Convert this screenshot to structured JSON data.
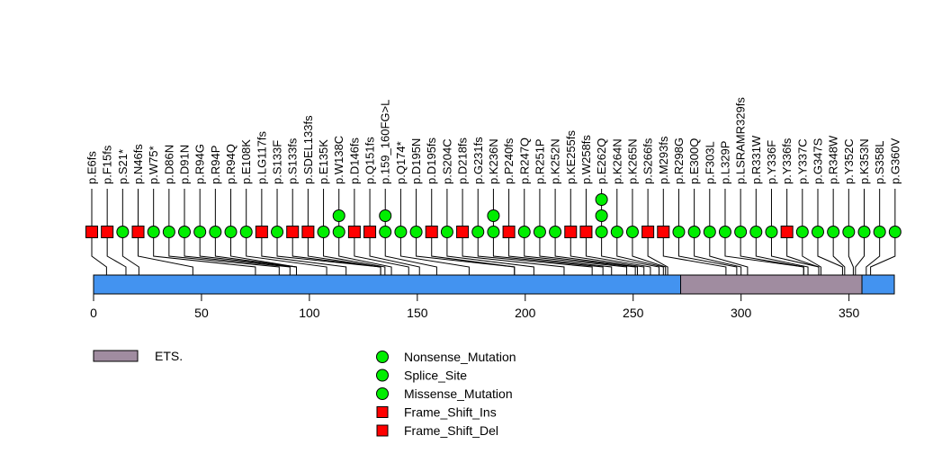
{
  "chart_data": {
    "type": "lollipop",
    "title": "",
    "xlabel": "",
    "protein_length": 371,
    "x_range": [
      0,
      371
    ],
    "x_ticks": [
      0,
      50,
      100,
      150,
      200,
      250,
      300,
      350
    ],
    "domains": [
      {
        "name": "ETS.",
        "start": 272,
        "end": 356,
        "color": "#A08CA0"
      }
    ],
    "backbone_color": "#4393F0",
    "mutation_types": [
      {
        "name": "Nonsense_Mutation",
        "shape": "circle",
        "color": "#00EE00"
      },
      {
        "name": "Splice_Site",
        "shape": "circle",
        "color": "#00EE00"
      },
      {
        "name": "Missense_Mutation",
        "shape": "circle",
        "color": "#00EE00"
      },
      {
        "name": "Frame_Shift_Ins",
        "shape": "square",
        "color": "#FF0000"
      },
      {
        "name": "Frame_Shift_Del",
        "shape": "square",
        "color": "#FF0000"
      }
    ],
    "mutations": [
      {
        "label": "p.E6fs",
        "position": 6,
        "shape": "square",
        "count": 1
      },
      {
        "label": "p.F15fs",
        "position": 15,
        "shape": "square",
        "count": 1
      },
      {
        "label": "p.S21*",
        "position": 21,
        "shape": "circle",
        "count": 1
      },
      {
        "label": "p.N46fs",
        "position": 46,
        "shape": "square",
        "count": 1
      },
      {
        "label": "p.W75*",
        "position": 75,
        "shape": "circle",
        "count": 1
      },
      {
        "label": "p.D86N",
        "position": 86,
        "shape": "circle",
        "count": 1
      },
      {
        "label": "p.D91N",
        "position": 91,
        "shape": "circle",
        "count": 1
      },
      {
        "label": "p.R94G",
        "position": 94,
        "shape": "circle",
        "count": 1
      },
      {
        "label": "p.R94P",
        "position": 94,
        "shape": "circle",
        "count": 1
      },
      {
        "label": "p.R94Q",
        "position": 94,
        "shape": "circle",
        "count": 1
      },
      {
        "label": "p.E108K",
        "position": 108,
        "shape": "circle",
        "count": 1
      },
      {
        "label": "p.LG117fs",
        "position": 117,
        "shape": "square",
        "count": 1
      },
      {
        "label": "p.S133F",
        "position": 133,
        "shape": "circle",
        "count": 1
      },
      {
        "label": "p.S133fs",
        "position": 133,
        "shape": "square",
        "count": 1
      },
      {
        "label": "p.SDEL133fs",
        "position": 133,
        "shape": "square",
        "count": 1
      },
      {
        "label": "p.E135K",
        "position": 135,
        "shape": "circle",
        "count": 1
      },
      {
        "label": "p.W138C",
        "position": 138,
        "shape": "circle",
        "count": 2
      },
      {
        "label": "p.D146fs",
        "position": 146,
        "shape": "square",
        "count": 1
      },
      {
        "label": "p.Q151fs",
        "position": 151,
        "shape": "square",
        "count": 1
      },
      {
        "label": "p.159_160FG>L",
        "position": 159,
        "shape": "circle",
        "count": 2
      },
      {
        "label": "p.Q174*",
        "position": 174,
        "shape": "circle",
        "count": 1
      },
      {
        "label": "p.D195N",
        "position": 195,
        "shape": "circle",
        "count": 1
      },
      {
        "label": "p.D195fs",
        "position": 195,
        "shape": "square",
        "count": 1
      },
      {
        "label": "p.S204C",
        "position": 204,
        "shape": "circle",
        "count": 1
      },
      {
        "label": "p.D218fs",
        "position": 218,
        "shape": "square",
        "count": 1
      },
      {
        "label": "p.G231fs",
        "position": 231,
        "shape": "circle",
        "count": 1
      },
      {
        "label": "p.K236N",
        "position": 236,
        "shape": "circle",
        "count": 2
      },
      {
        "label": "p.P240fs",
        "position": 240,
        "shape": "square",
        "count": 1
      },
      {
        "label": "p.R247Q",
        "position": 247,
        "shape": "circle",
        "count": 1
      },
      {
        "label": "p.R251P",
        "position": 251,
        "shape": "circle",
        "count": 1
      },
      {
        "label": "p.K252N",
        "position": 252,
        "shape": "circle",
        "count": 1
      },
      {
        "label": "p.KE255fs",
        "position": 255,
        "shape": "square",
        "count": 1
      },
      {
        "label": "p.W258fs",
        "position": 258,
        "shape": "square",
        "count": 1
      },
      {
        "label": "p.E262Q",
        "position": 262,
        "shape": "circle",
        "count": 3
      },
      {
        "label": "p.K264N",
        "position": 264,
        "shape": "circle",
        "count": 1
      },
      {
        "label": "p.K265N",
        "position": 265,
        "shape": "circle",
        "count": 1
      },
      {
        "label": "p.S266fs",
        "position": 266,
        "shape": "square",
        "count": 1
      },
      {
        "label": "p.M293fs",
        "position": 293,
        "shape": "square",
        "count": 1
      },
      {
        "label": "p.R298G",
        "position": 298,
        "shape": "circle",
        "count": 1
      },
      {
        "label": "p.E300Q",
        "position": 300,
        "shape": "circle",
        "count": 1
      },
      {
        "label": "p.F303L",
        "position": 303,
        "shape": "circle",
        "count": 1
      },
      {
        "label": "p.L329P",
        "position": 329,
        "shape": "circle",
        "count": 1
      },
      {
        "label": "p.LSRAMR329fs",
        "position": 329,
        "shape": "circle",
        "count": 1
      },
      {
        "label": "p.R331W",
        "position": 331,
        "shape": "circle",
        "count": 1
      },
      {
        "label": "p.Y336F",
        "position": 336,
        "shape": "circle",
        "count": 1
      },
      {
        "label": "p.Y336fs",
        "position": 336,
        "shape": "square",
        "count": 1
      },
      {
        "label": "p.Y337C",
        "position": 337,
        "shape": "circle",
        "count": 1
      },
      {
        "label": "p.G347S",
        "position": 347,
        "shape": "circle",
        "count": 1
      },
      {
        "label": "p.R348W",
        "position": 348,
        "shape": "circle",
        "count": 1
      },
      {
        "label": "p.Y352C",
        "position": 352,
        "shape": "circle",
        "count": 1
      },
      {
        "label": "p.K353N",
        "position": 353,
        "shape": "circle",
        "count": 1
      },
      {
        "label": "p.S358L",
        "position": 358,
        "shape": "circle",
        "count": 1
      },
      {
        "label": "p.G360V",
        "position": 360,
        "shape": "circle",
        "count": 1
      }
    ],
    "legend": {
      "domains": [
        {
          "label": "ETS.",
          "color": "#A08CA0"
        }
      ],
      "mutation_types": [
        {
          "label": "Nonsense_Mutation",
          "shape": "circle",
          "color": "#00EE00"
        },
        {
          "label": "Splice_Site",
          "shape": "circle",
          "color": "#00EE00"
        },
        {
          "label": "Missense_Mutation",
          "shape": "circle",
          "color": "#00EE00"
        },
        {
          "label": "Frame_Shift_Ins",
          "shape": "square",
          "color": "#FF0000"
        },
        {
          "label": "Frame_Shift_Del",
          "shape": "square",
          "color": "#FF0000"
        }
      ],
      "placement": "bottom"
    }
  }
}
